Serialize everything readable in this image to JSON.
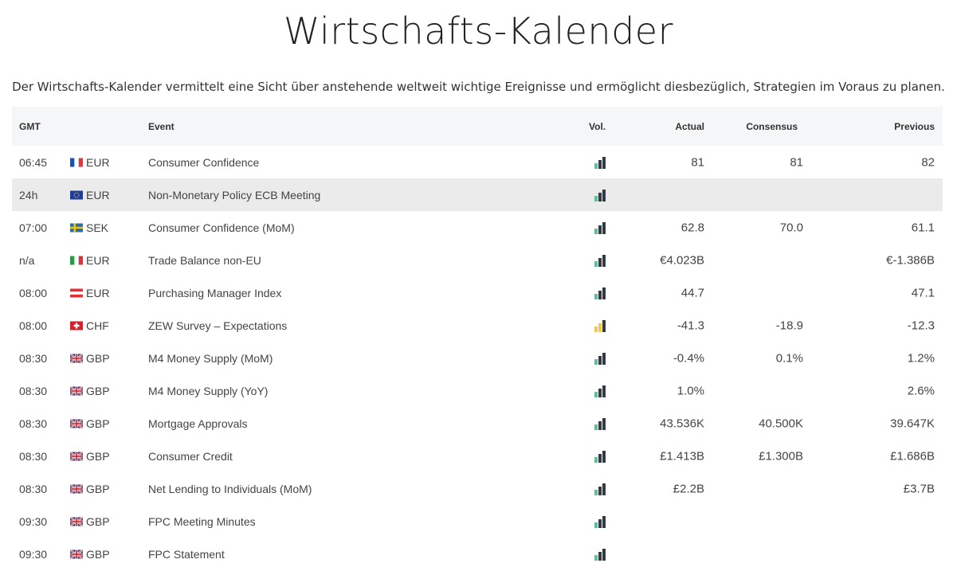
{
  "title": "Wirtschafts-Kalender",
  "subtitle": "Der Wirtschafts-Kalender vermittelt eine Sicht über anstehende weltweit wichtige Ereignisse und ermöglicht diesbezüglich, Strategien im Voraus zu planen.",
  "columns": {
    "gmt": "GMT",
    "event": "Event",
    "vol": "Vol.",
    "actual": "Actual",
    "consensus": "Consensus",
    "previous": "Previous"
  },
  "colors": {
    "vol_low": "#5fbf96",
    "vol_medium": "#f2c94c",
    "vol_dark": "#333a45",
    "header_bg": "#f5f6f7",
    "highlight_bg": "#ebebeb"
  },
  "rows": [
    {
      "time": "06:45",
      "flag": "fr",
      "currency": "EUR",
      "event": "Consumer Confidence",
      "vol": "low",
      "actual": "81",
      "consensus": "81",
      "previous": "82"
    },
    {
      "time": "24h",
      "flag": "eu",
      "currency": "EUR",
      "event": "Non-Monetary Policy ECB Meeting",
      "vol": "low",
      "actual": "",
      "consensus": "",
      "previous": "",
      "highlight": true
    },
    {
      "time": "07:00",
      "flag": "se",
      "currency": "SEK",
      "event": "Consumer Confidence (MoM)",
      "vol": "low",
      "actual": "62.8",
      "consensus": "70.0",
      "previous": "61.1"
    },
    {
      "time": "n/a",
      "flag": "it",
      "currency": "EUR",
      "event": "Trade Balance non-EU",
      "vol": "low",
      "actual": "€4.023B",
      "consensus": "",
      "previous": "€-1.386B"
    },
    {
      "time": "08:00",
      "flag": "at",
      "currency": "EUR",
      "event": "Purchasing Manager Index",
      "vol": "low",
      "actual": "44.7",
      "consensus": "",
      "previous": "47.1"
    },
    {
      "time": "08:00",
      "flag": "ch",
      "currency": "CHF",
      "event": "ZEW Survey – Expectations",
      "vol": "medium",
      "actual": "-41.3",
      "consensus": "-18.9",
      "previous": "-12.3"
    },
    {
      "time": "08:30",
      "flag": "gb",
      "currency": "GBP",
      "event": "M4 Money Supply (MoM)",
      "vol": "low",
      "actual": "-0.4%",
      "consensus": "0.1%",
      "previous": "1.2%"
    },
    {
      "time": "08:30",
      "flag": "gb",
      "currency": "GBP",
      "event": "M4 Money Supply (YoY)",
      "vol": "low",
      "actual": "1.0%",
      "consensus": "",
      "previous": "2.6%"
    },
    {
      "time": "08:30",
      "flag": "gb",
      "currency": "GBP",
      "event": "Mortgage Approvals",
      "vol": "low",
      "actual": "43.536K",
      "consensus": "40.500K",
      "previous": "39.647K"
    },
    {
      "time": "08:30",
      "flag": "gb",
      "currency": "GBP",
      "event": "Consumer Credit",
      "vol": "low",
      "actual": "£1.413B",
      "consensus": "£1.300B",
      "previous": "£1.686B"
    },
    {
      "time": "08:30",
      "flag": "gb",
      "currency": "GBP",
      "event": "Net Lending to Individuals (MoM)",
      "vol": "low",
      "actual": "£2.2B",
      "consensus": "",
      "previous": "£3.7B"
    },
    {
      "time": "09:30",
      "flag": "gb",
      "currency": "GBP",
      "event": "FPC Meeting Minutes",
      "vol": "low",
      "actual": "",
      "consensus": "",
      "previous": ""
    },
    {
      "time": "09:30",
      "flag": "gb",
      "currency": "GBP",
      "event": "FPC Statement",
      "vol": "low",
      "actual": "",
      "consensus": "",
      "previous": ""
    }
  ]
}
